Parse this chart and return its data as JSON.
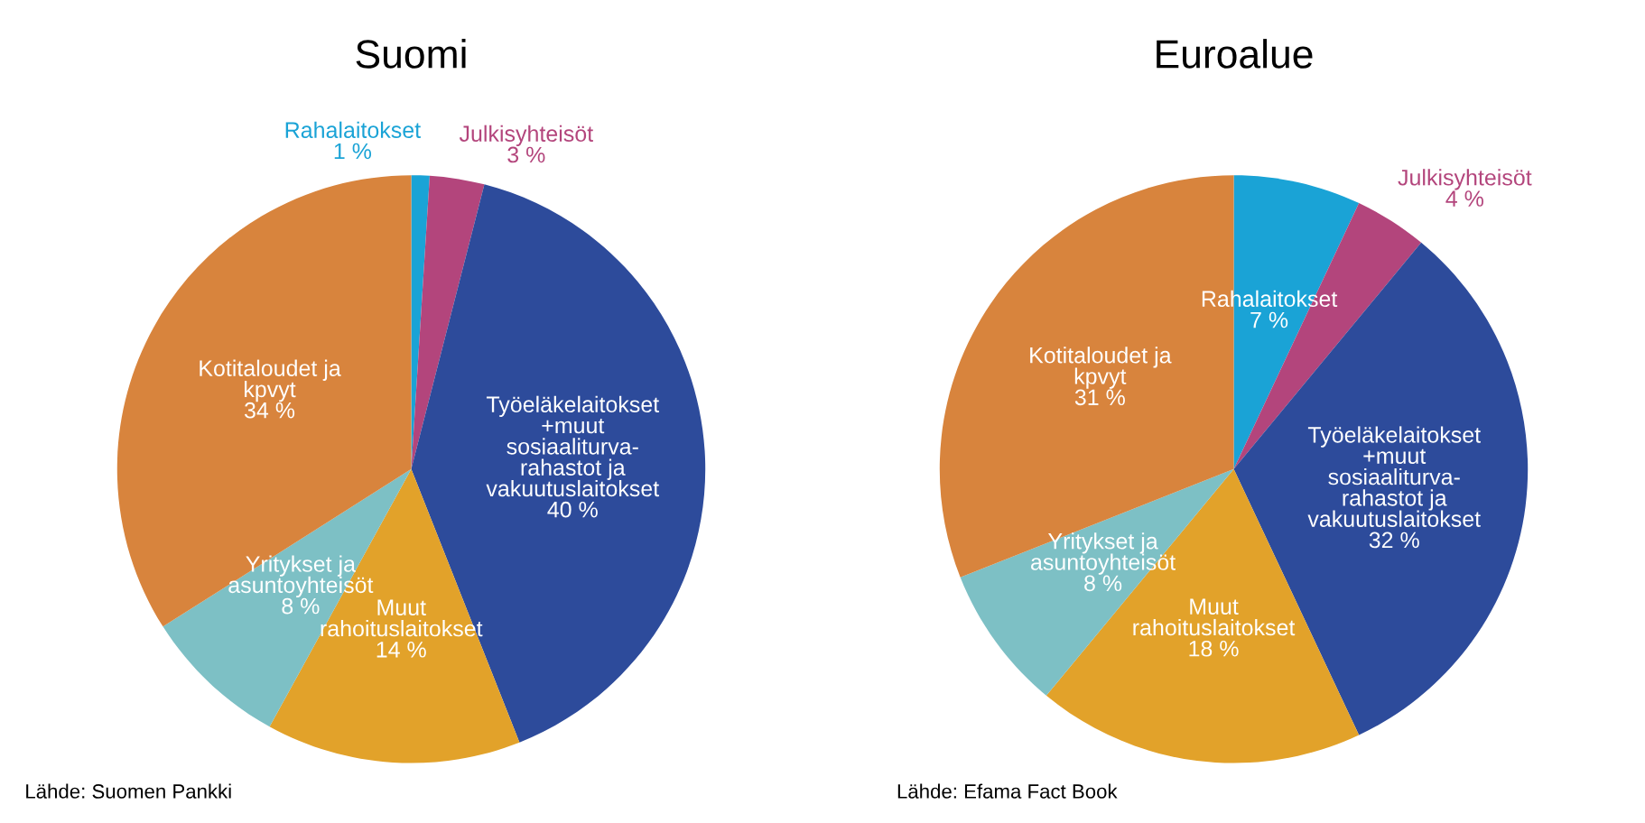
{
  "chart_data": [
    {
      "type": "pie",
      "title": "Suomi",
      "categories": [
        "Rahalaitokset",
        "Julkisyhteisöt",
        "Työeläkelaitokset\n+muut\nsosiaaliturva-\nrahastot ja\nvakuutuslaitokset",
        "Muut\nrahoituslaitokset",
        "Yritykset ja\nasuntoyhteisöt",
        "Kotitaloudet ja\nkpvyt"
      ],
      "values": [
        1,
        3,
        40,
        14,
        8,
        34
      ],
      "value_labels": [
        "1 %",
        "3 %",
        "40 %",
        "14 %",
        "8 %",
        "34 %"
      ],
      "colors": [
        "#1aa3d6",
        "#b3457c",
        "#2d4b9b",
        "#e2a22a",
        "#7dc0c5",
        "#d8843d"
      ],
      "annotations": [
        "Lähde: Suomen Pankki"
      ],
      "legend": false
    },
    {
      "type": "pie",
      "title": "Euroalue",
      "categories": [
        "Rahalaitokset",
        "Julkisyhteisöt",
        "Työeläkelaitokset\n+muut\nsosiaaliturva-\nrahastot ja\nvakuutuslaitokset",
        "Muut\nrahoituslaitokset",
        "Yritykset ja\nasuntoyhteisöt",
        "Kotitaloudet ja\nkpvyt"
      ],
      "values": [
        7,
        4,
        32,
        18,
        8,
        31
      ],
      "value_labels": [
        "7 %",
        "4 %",
        "32 %",
        "18 %",
        "8 %",
        "31 %"
      ],
      "colors": [
        "#1aa3d6",
        "#b3457c",
        "#2d4b9b",
        "#e2a22a",
        "#7dc0c5",
        "#d8843d"
      ],
      "annotations": [
        "Lähde: Efama Fact Book"
      ],
      "legend": false
    }
  ]
}
